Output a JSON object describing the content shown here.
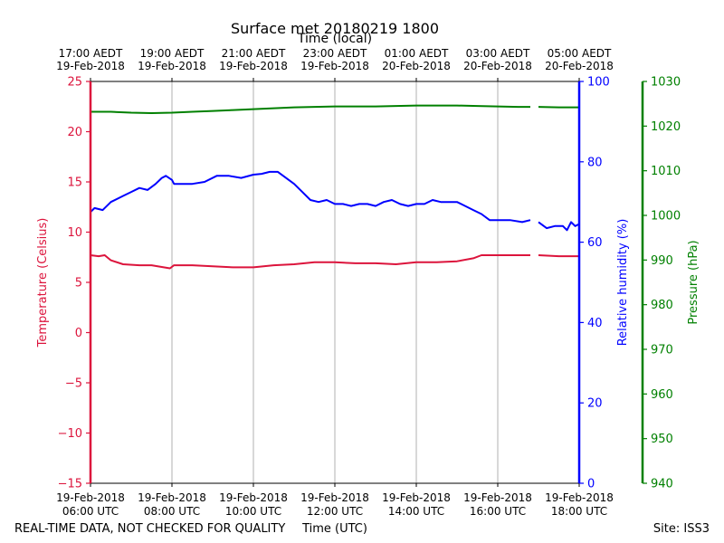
{
  "colors": {
    "temperature": "#dc143c",
    "humidity": "#0000ff",
    "pressure": "#008000",
    "grid": "#b0b0b0"
  },
  "chart_data": {
    "type": "line",
    "title": "Surface met 20180219 1800",
    "top_axis_label": "Time (local)",
    "bottom_axis_label": "Time (UTC)",
    "footer_left": "REAL-TIME DATA, NOT CHECKED FOR QUALITY",
    "footer_right": "Site: ISS3",
    "x_range_hours_utc": [
      6,
      18
    ],
    "bottom_ticks": [
      {
        "hour": 6,
        "line1": "19-Feb-2018",
        "line2": "06:00 UTC"
      },
      {
        "hour": 8,
        "line1": "19-Feb-2018",
        "line2": "08:00 UTC"
      },
      {
        "hour": 10,
        "line1": "19-Feb-2018",
        "line2": "10:00 UTC"
      },
      {
        "hour": 12,
        "line1": "19-Feb-2018",
        "line2": "12:00 UTC"
      },
      {
        "hour": 14,
        "line1": "19-Feb-2018",
        "line2": "14:00 UTC"
      },
      {
        "hour": 16,
        "line1": "19-Feb-2018",
        "line2": "16:00 UTC"
      },
      {
        "hour": 18,
        "line1": "19-Feb-2018",
        "line2": "18:00 UTC"
      }
    ],
    "top_ticks": [
      {
        "hour": 6,
        "line1": "17:00 AEDT",
        "line2": "19-Feb-2018"
      },
      {
        "hour": 8,
        "line1": "19:00 AEDT",
        "line2": "19-Feb-2018"
      },
      {
        "hour": 10,
        "line1": "21:00 AEDT",
        "line2": "19-Feb-2018"
      },
      {
        "hour": 12,
        "line1": "23:00 AEDT",
        "line2": "19-Feb-2018"
      },
      {
        "hour": 14,
        "line1": "01:00 AEDT",
        "line2": "20-Feb-2018"
      },
      {
        "hour": 16,
        "line1": "03:00 AEDT",
        "line2": "20-Feb-2018"
      },
      {
        "hour": 18,
        "line1": "05:00 AEDT",
        "line2": "20-Feb-2018"
      }
    ],
    "axes": {
      "temperature": {
        "label": "Temperature (Celsius)",
        "ylim": [
          -15,
          25
        ],
        "ticks": [
          -15,
          -10,
          -5,
          0,
          5,
          10,
          15,
          20,
          25
        ]
      },
      "humidity": {
        "label": "Relative humidity (%)",
        "ylim": [
          0,
          100
        ],
        "ticks": [
          0,
          20,
          40,
          60,
          80,
          100
        ]
      },
      "pressure": {
        "label": "Pressure (hPa)",
        "ylim": [
          940,
          1030
        ],
        "ticks": [
          940,
          950,
          960,
          970,
          980,
          990,
          1000,
          1010,
          1020,
          1030
        ]
      }
    },
    "series": [
      {
        "name": "Temperature",
        "axis": "temperature",
        "segments": [
          [
            [
              6.0,
              7.7
            ],
            [
              6.2,
              7.6
            ],
            [
              6.35,
              7.7
            ],
            [
              6.5,
              7.2
            ],
            [
              6.8,
              6.8
            ],
            [
              7.2,
              6.7
            ],
            [
              7.5,
              6.7
            ],
            [
              7.8,
              6.5
            ],
            [
              7.95,
              6.4
            ],
            [
              8.05,
              6.7
            ],
            [
              8.5,
              6.7
            ],
            [
              9.0,
              6.6
            ],
            [
              9.5,
              6.5
            ],
            [
              10.0,
              6.5
            ],
            [
              10.5,
              6.7
            ],
            [
              11.0,
              6.8
            ],
            [
              11.5,
              7.0
            ],
            [
              12.0,
              7.0
            ],
            [
              12.5,
              6.9
            ],
            [
              13.0,
              6.9
            ],
            [
              13.5,
              6.8
            ],
            [
              14.0,
              7.0
            ],
            [
              14.5,
              7.0
            ],
            [
              15.0,
              7.1
            ],
            [
              15.4,
              7.4
            ],
            [
              15.6,
              7.7
            ],
            [
              15.9,
              7.7
            ],
            [
              16.3,
              7.7
            ],
            [
              16.8,
              7.7
            ]
          ],
          [
            [
              17.0,
              7.7
            ],
            [
              17.5,
              7.6
            ],
            [
              18.0,
              7.6
            ]
          ]
        ]
      },
      {
        "name": "Relative humidity",
        "axis": "humidity",
        "segments": [
          [
            [
              6.0,
              67.5
            ],
            [
              6.1,
              68.5
            ],
            [
              6.3,
              68.0
            ],
            [
              6.5,
              70.0
            ],
            [
              6.8,
              71.5
            ],
            [
              7.0,
              72.5
            ],
            [
              7.2,
              73.5
            ],
            [
              7.4,
              73.0
            ],
            [
              7.6,
              74.5
            ],
            [
              7.75,
              76.0
            ],
            [
              7.85,
              76.5
            ],
            [
              8.0,
              75.5
            ],
            [
              8.05,
              74.5
            ],
            [
              8.3,
              74.5
            ],
            [
              8.5,
              74.5
            ],
            [
              8.8,
              75.0
            ],
            [
              9.1,
              76.5
            ],
            [
              9.4,
              76.5
            ],
            [
              9.7,
              76.0
            ],
            [
              10.0,
              76.8
            ],
            [
              10.2,
              77.0
            ],
            [
              10.4,
              77.5
            ],
            [
              10.6,
              77.5
            ],
            [
              10.8,
              76.0
            ],
            [
              11.0,
              74.5
            ],
            [
              11.2,
              72.5
            ],
            [
              11.4,
              70.5
            ],
            [
              11.6,
              70.0
            ],
            [
              11.8,
              70.5
            ],
            [
              12.0,
              69.5
            ],
            [
              12.2,
              69.5
            ],
            [
              12.4,
              69.0
            ],
            [
              12.6,
              69.5
            ],
            [
              12.8,
              69.5
            ],
            [
              13.0,
              69.0
            ],
            [
              13.2,
              70.0
            ],
            [
              13.4,
              70.5
            ],
            [
              13.6,
              69.5
            ],
            [
              13.8,
              69.0
            ],
            [
              14.0,
              69.5
            ],
            [
              14.2,
              69.5
            ],
            [
              14.4,
              70.5
            ],
            [
              14.6,
              70.0
            ],
            [
              14.8,
              70.0
            ],
            [
              15.0,
              70.0
            ],
            [
              15.2,
              69.0
            ],
            [
              15.4,
              68.0
            ],
            [
              15.6,
              67.0
            ],
            [
              15.8,
              65.5
            ],
            [
              16.0,
              65.5
            ],
            [
              16.3,
              65.5
            ],
            [
              16.6,
              65.0
            ],
            [
              16.8,
              65.5
            ]
          ],
          [
            [
              17.0,
              65.0
            ],
            [
              17.2,
              63.5
            ],
            [
              17.4,
              64.0
            ],
            [
              17.6,
              64.0
            ],
            [
              17.7,
              63.0
            ],
            [
              17.8,
              65.0
            ],
            [
              17.9,
              64.0
            ],
            [
              18.0,
              64.5
            ]
          ]
        ]
      },
      {
        "name": "Pressure",
        "axis": "pressure",
        "segments": [
          [
            [
              6.0,
              1023.2
            ],
            [
              6.5,
              1023.2
            ],
            [
              7.0,
              1023.0
            ],
            [
              7.5,
              1022.9
            ],
            [
              8.0,
              1023.0
            ],
            [
              8.5,
              1023.2
            ],
            [
              9.0,
              1023.4
            ],
            [
              9.5,
              1023.6
            ],
            [
              10.0,
              1023.8
            ],
            [
              10.5,
              1024.0
            ],
            [
              11.0,
              1024.2
            ],
            [
              11.5,
              1024.3
            ],
            [
              12.0,
              1024.4
            ],
            [
              12.5,
              1024.4
            ],
            [
              13.0,
              1024.4
            ],
            [
              13.5,
              1024.5
            ],
            [
              14.0,
              1024.6
            ],
            [
              14.5,
              1024.6
            ],
            [
              15.0,
              1024.6
            ],
            [
              15.5,
              1024.5
            ],
            [
              16.0,
              1024.4
            ],
            [
              16.5,
              1024.3
            ],
            [
              16.8,
              1024.3
            ]
          ],
          [
            [
              17.0,
              1024.3
            ],
            [
              17.5,
              1024.2
            ],
            [
              18.0,
              1024.2
            ]
          ]
        ]
      }
    ]
  }
}
